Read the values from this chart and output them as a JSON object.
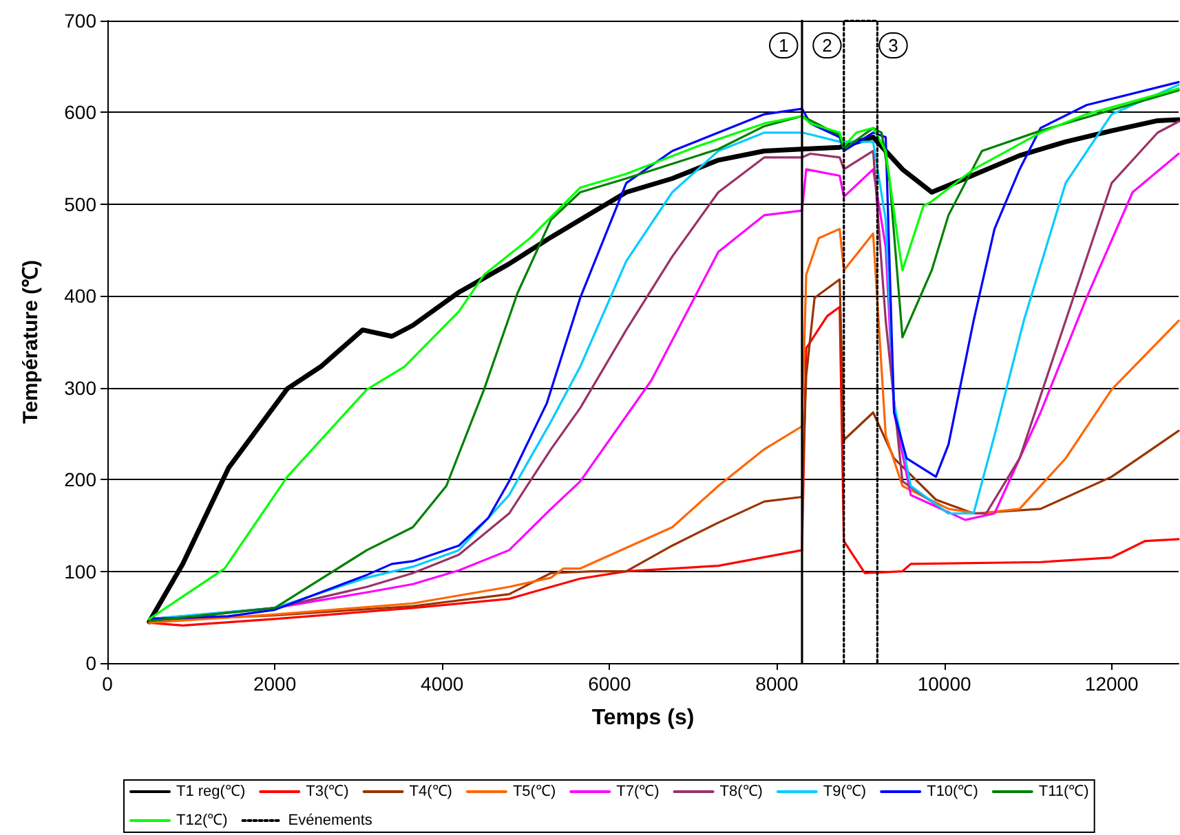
{
  "chart_data": {
    "type": "line",
    "xlabel": "Temps (s)",
    "ylabel": "Température (℃)",
    "xlim": [
      0,
      12800
    ],
    "xticks": [
      0,
      2000,
      4000,
      6000,
      8000,
      10000,
      12000
    ],
    "ylim": [
      0,
      700
    ],
    "yticks": [
      0,
      100,
      200,
      300,
      400,
      500,
      600,
      700
    ],
    "grid": "y",
    "legend": "bottom",
    "marker": "none",
    "line_style": "solid",
    "annotations": [
      {
        "text": "1",
        "x": 8080,
        "y": 673
      },
      {
        "text": "2",
        "x": 8600,
        "y": 673
      },
      {
        "text": "3",
        "x": 9390,
        "y": 673
      }
    ],
    "series": [
      {
        "name": "T1 reg(℃)",
        "color": "#000000",
        "x": [
          500,
          900,
          1450,
          2150,
          2550,
          3050,
          3400,
          3650,
          4200,
          4800,
          5300,
          5650,
          6200,
          6750,
          7300,
          7850,
          8300,
          8750,
          9150,
          9500,
          9850,
          10250,
          10900,
          11450,
          12000,
          12550,
          12800
        ],
        "values": [
          45,
          108,
          213,
          299,
          323,
          363,
          356,
          368,
          404,
          435,
          464,
          483,
          513,
          528,
          548,
          558,
          560,
          562,
          573,
          538,
          513,
          528,
          553,
          568,
          580,
          591,
          592
        ]
      },
      {
        "name": "T3(℃)",
        "color": "#ff0000",
        "x": [
          500,
          900,
          2000,
          3650,
          4800,
          5650,
          6200,
          7300,
          8300,
          8350,
          8600,
          8750,
          8800,
          9050,
          9500,
          9600,
          11150,
          12000,
          12400,
          12800
        ],
        "values": [
          44,
          41,
          48,
          60,
          70,
          92,
          100,
          106,
          123,
          343,
          378,
          388,
          133,
          98,
          100,
          108,
          110,
          115,
          133,
          135
        ]
      },
      {
        "name": "T4(℃)",
        "color": "#993300",
        "x": [
          500,
          2000,
          3650,
          4800,
          5300,
          5800,
          6200,
          6750,
          7300,
          7850,
          8300,
          8350,
          8450,
          8750,
          8800,
          9150,
          9400,
          9900,
          10350,
          11150,
          12000,
          12800
        ],
        "values": [
          46,
          52,
          62,
          75,
          98,
          100,
          100,
          128,
          153,
          176,
          181,
          313,
          398,
          418,
          243,
          273,
          223,
          178,
          163,
          168,
          203,
          253
        ]
      },
      {
        "name": "T5(℃)",
        "color": "#ff6600",
        "x": [
          500,
          2000,
          3650,
          4800,
          5300,
          5450,
          5650,
          6750,
          7300,
          7850,
          8300,
          8350,
          8500,
          8750,
          8800,
          9150,
          9300,
          9500,
          10050,
          10400,
          10900,
          11450,
          12000,
          12800
        ],
        "values": [
          44,
          53,
          65,
          83,
          93,
          103,
          103,
          148,
          193,
          233,
          258,
          423,
          463,
          473,
          428,
          468,
          248,
          193,
          168,
          163,
          168,
          223,
          298,
          373
        ]
      },
      {
        "name": "T7(℃)",
        "color": "#ff00ff",
        "x": [
          500,
          900,
          2000,
          3100,
          3650,
          4200,
          4800,
          5300,
          5650,
          6500,
          7300,
          7850,
          8300,
          8350,
          8750,
          8800,
          9150,
          9300,
          9400,
          9600,
          10250,
          10600,
          11150,
          11700,
          12250,
          12800
        ],
        "values": [
          48,
          51,
          60,
          77,
          86,
          101,
          123,
          168,
          198,
          308,
          448,
          488,
          493,
          538,
          531,
          508,
          538,
          453,
          273,
          183,
          156,
          163,
          273,
          398,
          513,
          555
        ]
      },
      {
        "name": "T8(℃)",
        "color": "#993366",
        "x": [
          500,
          2000,
          3100,
          3650,
          4200,
          4800,
          5300,
          5650,
          6200,
          6750,
          7300,
          7850,
          8300,
          8400,
          8750,
          8800,
          9150,
          9300,
          9500,
          10050,
          10500,
          10900,
          11450,
          12000,
          12550,
          12800
        ],
        "values": [
          46,
          60,
          83,
          98,
          118,
          163,
          233,
          278,
          363,
          443,
          513,
          551,
          551,
          555,
          551,
          538,
          558,
          373,
          198,
          163,
          163,
          223,
          373,
          523,
          578,
          590
        ]
      },
      {
        "name": "T9(℃)",
        "color": "#00ccff",
        "x": [
          500,
          2000,
          3100,
          3650,
          4200,
          4800,
          5300,
          5650,
          6200,
          6750,
          7300,
          7850,
          8300,
          8400,
          8750,
          9150,
          9300,
          9400,
          9600,
          10050,
          10350,
          10600,
          10950,
          11450,
          12000,
          12800
        ],
        "values": [
          48,
          60,
          93,
          105,
          123,
          183,
          263,
          323,
          438,
          513,
          558,
          578,
          578,
          576,
          568,
          568,
          483,
          283,
          193,
          163,
          163,
          248,
          373,
          523,
          598,
          630
        ]
      },
      {
        "name": "T10(℃)",
        "color": "#0000ff",
        "x": [
          500,
          1450,
          2000,
          3100,
          3400,
          3650,
          4200,
          4550,
          4800,
          5250,
          5650,
          6200,
          6750,
          7300,
          7850,
          8300,
          8400,
          8750,
          8800,
          9150,
          9300,
          9400,
          9550,
          9900,
          10050,
          10350,
          10600,
          10900,
          11150,
          11700,
          12800
        ],
        "values": [
          48,
          51,
          58,
          96,
          108,
          111,
          128,
          158,
          198,
          283,
          398,
          523,
          558,
          578,
          598,
          604,
          588,
          573,
          558,
          578,
          573,
          273,
          223,
          203,
          238,
          373,
          473,
          538,
          583,
          608,
          633
        ]
      },
      {
        "name": "T11(℃)",
        "color": "#008000",
        "x": [
          500,
          2000,
          3100,
          3650,
          4050,
          4200,
          4500,
          4900,
          5300,
          5650,
          6200,
          7300,
          7850,
          8300,
          8750,
          8800,
          9150,
          9250,
          9350,
          9500,
          9850,
          10050,
          10450,
          11150,
          12800
        ],
        "values": [
          46,
          60,
          123,
          148,
          193,
          228,
          298,
          403,
          483,
          513,
          528,
          560,
          585,
          596,
          575,
          560,
          583,
          578,
          523,
          355,
          428,
          488,
          558,
          580,
          624
        ]
      },
      {
        "name": "T12(℃)",
        "color": "#00ff00",
        "x": [
          500,
          1400,
          2150,
          3100,
          3550,
          4200,
          4500,
          5050,
          5650,
          6200,
          7050,
          7850,
          8300,
          8400,
          8750,
          8800,
          8950,
          9150,
          9300,
          9450,
          9500,
          9750,
          9850,
          10350,
          11150,
          11700,
          12800
        ],
        "values": [
          48,
          103,
          203,
          298,
          323,
          383,
          423,
          463,
          518,
          533,
          563,
          588,
          596,
          588,
          578,
          563,
          578,
          583,
          558,
          458,
          428,
          498,
          503,
          538,
          578,
          598,
          626
        ]
      },
      {
        "color": "#000000",
        "line_style": "solid",
        "x": [
          8300,
          8300
        ],
        "values": [
          0,
          700
        ]
      },
      {
        "name": "Evénements",
        "color": "#000000",
        "line_style": "dotted",
        "x": [
          8800,
          8800,
          9200,
          9200
        ],
        "values": [
          0,
          700,
          700,
          0
        ]
      }
    ]
  }
}
